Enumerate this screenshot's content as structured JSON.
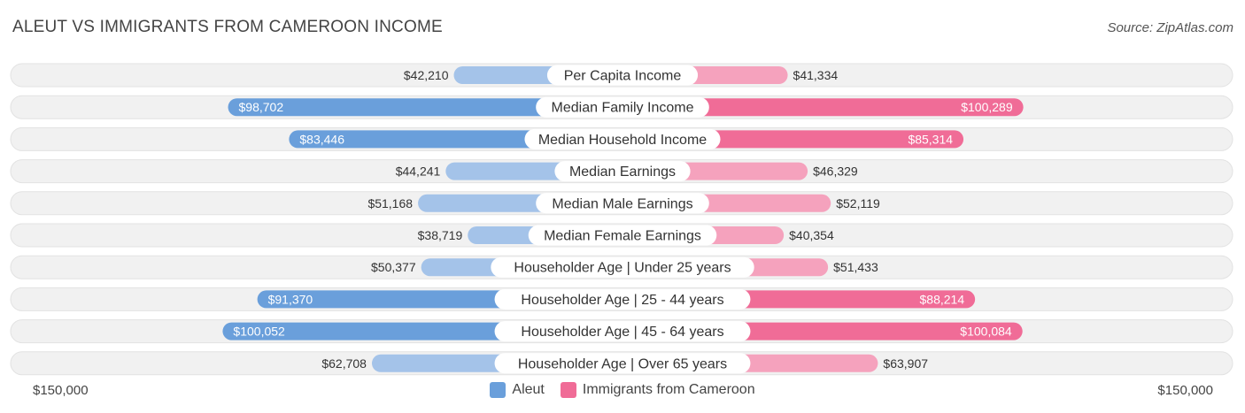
{
  "header": {
    "title": "ALEUT VS IMMIGRANTS FROM CAMEROON INCOME",
    "source": "Source: ZipAtlas.com"
  },
  "axis": {
    "left_label": "$150,000",
    "right_label": "$150,000"
  },
  "legend": {
    "left": "Aleut",
    "right": "Immigrants from Cameroon"
  },
  "colors": {
    "left_strong": "#6a9fdb",
    "left_light": "#a4c3e9",
    "right_strong": "#f06c97",
    "right_light": "#f5a2bd",
    "row_bg": "#f1f1f1"
  },
  "chart_data": {
    "type": "bar",
    "orientation": "horizontal-diverging",
    "max": 150000,
    "categories": [
      "Per Capita Income",
      "Median Family Income",
      "Median Household Income",
      "Median Earnings",
      "Median Male Earnings",
      "Median Female Earnings",
      "Householder Age | Under 25 years",
      "Householder Age | 25 - 44 years",
      "Householder Age | 45 - 64 years",
      "Householder Age | Over 65 years"
    ],
    "series": [
      {
        "name": "Aleut",
        "values": [
          42210,
          98702,
          83446,
          44241,
          51168,
          38719,
          50377,
          91370,
          100052,
          62708
        ],
        "labels": [
          "$42,210",
          "$98,702",
          "$83,446",
          "$44,241",
          "$51,168",
          "$38,719",
          "$50,377",
          "$91,370",
          "$100,052",
          "$62,708"
        ]
      },
      {
        "name": "Immigrants from Cameroon",
        "values": [
          41334,
          100289,
          85314,
          46329,
          52119,
          40354,
          51433,
          88214,
          100084,
          63907
        ],
        "labels": [
          "$41,334",
          "$100,289",
          "$85,314",
          "$46,329",
          "$52,119",
          "$40,354",
          "$51,433",
          "$88,214",
          "$100,084",
          "$63,907"
        ]
      }
    ],
    "legend_position": "bottom-center"
  }
}
